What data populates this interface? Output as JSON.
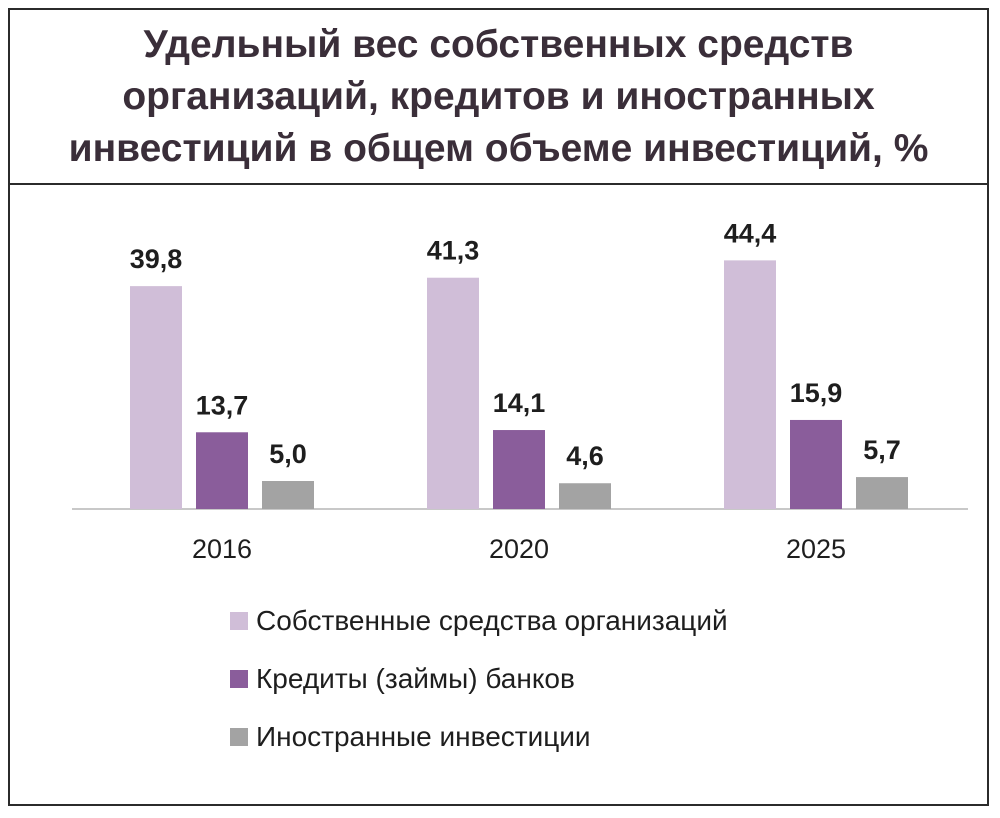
{
  "chart_data": {
    "type": "bar",
    "title": "Удельный вес собственных средств организаций, кредитов и иностранных инвестиций в общем объеме инвестиций, %",
    "categories": [
      "2016",
      "2020",
      "2025"
    ],
    "series": [
      {
        "name": "Собственные средства организаций",
        "color": "#d0bed8",
        "values": [
          39.8,
          41.3,
          44.4
        ],
        "labels": [
          "39,8",
          "41,3",
          "44,4"
        ]
      },
      {
        "name": "Кредиты (займы) банков",
        "color": "#8a5d9b",
        "values": [
          13.7,
          14.1,
          15.9
        ],
        "labels": [
          "13,7",
          "14,1",
          "15,9"
        ]
      },
      {
        "name": "Иностранные инвестиции",
        "color": "#a3a3a3",
        "values": [
          5.0,
          4.6,
          5.7
        ],
        "labels": [
          "5,0",
          "4,6",
          "5,7"
        ]
      }
    ],
    "ylim": [
      0,
      50
    ],
    "grid": false,
    "legend": "bottom"
  }
}
